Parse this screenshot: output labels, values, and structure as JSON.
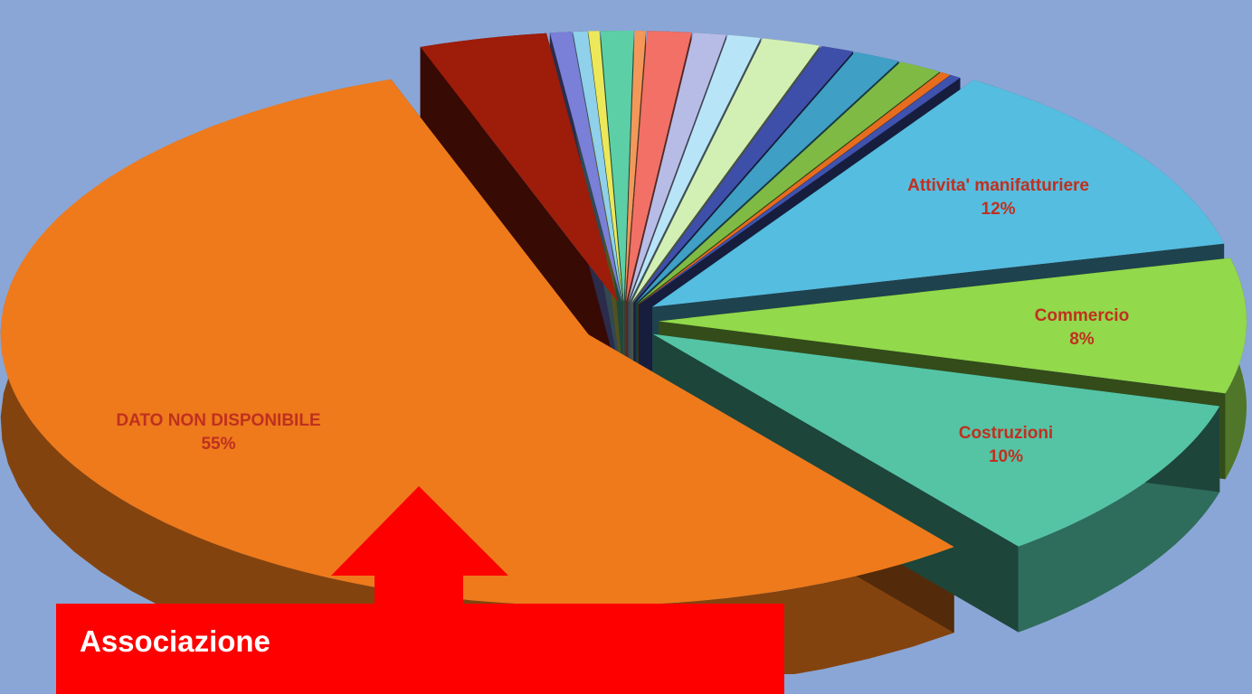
{
  "chart_data": {
    "type": "pie",
    "style": "3d-exploded",
    "title": "",
    "legend": "none",
    "slices": [
      {
        "label": "DATO NON DISPONIBILE",
        "value": 55,
        "value_label": "55%",
        "color": "#ee7a1c"
      },
      {
        "label": "",
        "value": 3.5,
        "value_label": "",
        "color": "#9d1c0a"
      },
      {
        "label": "",
        "value": 0.6,
        "value_label": "",
        "color": "#7a7fd8"
      },
      {
        "label": "",
        "value": 0.4,
        "value_label": "",
        "color": "#8fd0ea"
      },
      {
        "label": "",
        "value": 0.3,
        "value_label": "",
        "color": "#ece85a"
      },
      {
        "label": "",
        "value": 0.9,
        "value_label": "",
        "color": "#5ccfa6"
      },
      {
        "label": "",
        "value": 0.3,
        "value_label": "",
        "color": "#f4985a"
      },
      {
        "label": "",
        "value": 1.2,
        "value_label": "",
        "color": "#f27065"
      },
      {
        "label": "",
        "value": 0.9,
        "value_label": "",
        "color": "#b6bce6"
      },
      {
        "label": "",
        "value": 0.9,
        "value_label": "",
        "color": "#b8e4f7"
      },
      {
        "label": "",
        "value": 1.6,
        "value_label": "",
        "color": "#d2f0b4"
      },
      {
        "label": "",
        "value": 0.9,
        "value_label": "",
        "color": "#3e4faa"
      },
      {
        "label": "",
        "value": 1.3,
        "value_label": "",
        "color": "#3f9fc4"
      },
      {
        "label": "",
        "value": 1.2,
        "value_label": "",
        "color": "#7fba45"
      },
      {
        "label": "",
        "value": 0.3,
        "value_label": "",
        "color": "#e66c1e"
      },
      {
        "label": "",
        "value": 0.3,
        "value_label": "",
        "color": "#3f52ad"
      },
      {
        "label": "Attivita' manifatturiere",
        "value": 12,
        "value_label": "12%",
        "color": "#55bde0"
      },
      {
        "label": "Commercio",
        "value": 8,
        "value_label": "8%",
        "color": "#92d94b"
      },
      {
        "label": "Costruzioni",
        "value": 10,
        "value_label": "10%",
        "color": "#54c4a5"
      }
    ]
  },
  "callout": {
    "lines": [
      "Associazione",
      "                              "
    ],
    "color": "#fe0000",
    "arrow": "up"
  }
}
